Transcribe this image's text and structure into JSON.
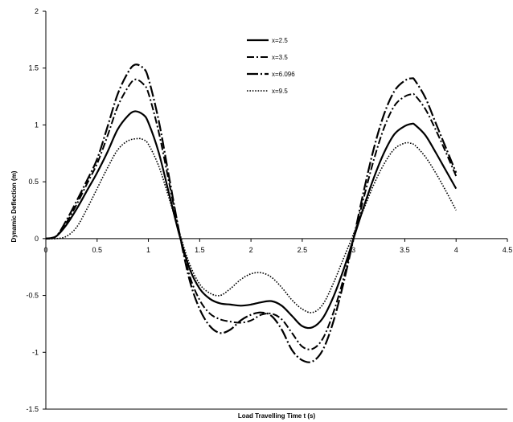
{
  "chart_data": {
    "type": "line",
    "xlabel": "Load Travelling Time t (s)",
    "ylabel": "Dynamic Deflection (m)",
    "xlim": [
      0,
      4.5
    ],
    "ylim": [
      -1.5,
      2
    ],
    "xticks": [
      0,
      0.5,
      1,
      1.5,
      2,
      2.5,
      3,
      3.5,
      4,
      4.5
    ],
    "yticks": [
      -1.5,
      -1,
      -0.5,
      0,
      0.5,
      1,
      1.5,
      2
    ],
    "xtick_labels": [
      "0",
      "0.5",
      "1",
      "1.5",
      "2",
      "2.5",
      "3",
      "3.5",
      "4",
      "4.5"
    ],
    "ytick_labels": [
      "-1.5",
      "-1",
      "-0.5",
      "0",
      "0.5",
      "1",
      "1.5",
      "2"
    ],
    "grid": false,
    "legend_position": "top-center",
    "series": [
      {
        "name": "x=2.5",
        "style": "solid",
        "color": "#000000",
        "x": [
          0,
          0.1,
          0.2,
          0.3,
          0.4,
          0.5,
          0.6,
          0.7,
          0.8,
          0.87,
          0.95,
          1.0,
          1.1,
          1.2,
          1.3,
          1.4,
          1.5,
          1.6,
          1.7,
          1.8,
          1.9,
          2.0,
          2.1,
          2.2,
          2.3,
          2.4,
          2.5,
          2.6,
          2.7,
          2.8,
          2.9,
          3.0,
          3.1,
          3.2,
          3.3,
          3.4,
          3.5,
          3.57,
          3.6,
          3.7,
          3.8,
          3.9,
          4.0
        ],
        "y": [
          0,
          0.02,
          0.12,
          0.26,
          0.42,
          0.58,
          0.76,
          0.96,
          1.08,
          1.12,
          1.09,
          1.02,
          0.76,
          0.4,
          0.04,
          -0.26,
          -0.44,
          -0.53,
          -0.57,
          -0.58,
          -0.59,
          -0.58,
          -0.56,
          -0.55,
          -0.59,
          -0.68,
          -0.77,
          -0.78,
          -0.7,
          -0.52,
          -0.28,
          0.0,
          0.28,
          0.54,
          0.76,
          0.92,
          0.99,
          1.01,
          1.0,
          0.91,
          0.76,
          0.6,
          0.44
        ]
      },
      {
        "name": "x=3.5",
        "style": "dash-dot",
        "color": "#000000",
        "x": [
          0,
          0.1,
          0.2,
          0.3,
          0.4,
          0.5,
          0.6,
          0.7,
          0.8,
          0.87,
          0.95,
          1.0,
          1.1,
          1.2,
          1.3,
          1.4,
          1.5,
          1.6,
          1.7,
          1.8,
          1.9,
          2.0,
          2.1,
          2.2,
          2.3,
          2.4,
          2.5,
          2.6,
          2.7,
          2.8,
          2.9,
          3.0,
          3.1,
          3.2,
          3.3,
          3.4,
          3.5,
          3.57,
          3.6,
          3.7,
          3.8,
          3.9,
          4.0
        ],
        "y": [
          0,
          0.02,
          0.14,
          0.3,
          0.48,
          0.66,
          0.9,
          1.16,
          1.33,
          1.4,
          1.36,
          1.28,
          0.94,
          0.5,
          0.06,
          -0.32,
          -0.54,
          -0.66,
          -0.71,
          -0.73,
          -0.74,
          -0.72,
          -0.67,
          -0.66,
          -0.71,
          -0.83,
          -0.95,
          -0.97,
          -0.88,
          -0.66,
          -0.36,
          0.0,
          0.36,
          0.7,
          0.98,
          1.17,
          1.25,
          1.27,
          1.26,
          1.14,
          0.96,
          0.76,
          0.55
        ]
      },
      {
        "name": "x=6.096",
        "style": "long-dash-dot",
        "color": "#000000",
        "x": [
          0,
          0.1,
          0.2,
          0.3,
          0.4,
          0.5,
          0.6,
          0.7,
          0.8,
          0.87,
          0.95,
          1.0,
          1.1,
          1.2,
          1.3,
          1.4,
          1.5,
          1.6,
          1.7,
          1.8,
          1.9,
          2.0,
          2.1,
          2.2,
          2.3,
          2.4,
          2.5,
          2.6,
          2.7,
          2.8,
          2.9,
          3.0,
          3.1,
          3.2,
          3.3,
          3.4,
          3.5,
          3.57,
          3.6,
          3.7,
          3.8,
          3.9,
          4.0
        ],
        "y": [
          0,
          0.02,
          0.16,
          0.33,
          0.51,
          0.7,
          0.98,
          1.27,
          1.46,
          1.53,
          1.5,
          1.41,
          1.04,
          0.55,
          0.06,
          -0.36,
          -0.62,
          -0.77,
          -0.83,
          -0.8,
          -0.72,
          -0.67,
          -0.65,
          -0.68,
          -0.8,
          -0.98,
          -1.07,
          -1.08,
          -0.98,
          -0.74,
          -0.4,
          0.0,
          0.42,
          0.8,
          1.1,
          1.3,
          1.39,
          1.41,
          1.39,
          1.24,
          1.02,
          0.8,
          0.58
        ]
      },
      {
        "name": "x=9.5",
        "style": "dotted",
        "color": "#000000",
        "x": [
          0,
          0.1,
          0.2,
          0.3,
          0.4,
          0.5,
          0.6,
          0.7,
          0.8,
          0.9,
          0.95,
          1.0,
          1.1,
          1.2,
          1.3,
          1.4,
          1.5,
          1.6,
          1.7,
          1.8,
          1.9,
          2.0,
          2.1,
          2.2,
          2.3,
          2.4,
          2.5,
          2.6,
          2.7,
          2.8,
          2.9,
          3.0,
          3.1,
          3.2,
          3.3,
          3.4,
          3.5,
          3.55,
          3.6,
          3.7,
          3.8,
          3.9,
          4.0
        ],
        "y": [
          0,
          0.0,
          0.02,
          0.1,
          0.26,
          0.44,
          0.62,
          0.78,
          0.86,
          0.88,
          0.87,
          0.83,
          0.64,
          0.36,
          0.06,
          -0.22,
          -0.4,
          -0.48,
          -0.5,
          -0.44,
          -0.36,
          -0.31,
          -0.3,
          -0.34,
          -0.43,
          -0.54,
          -0.62,
          -0.65,
          -0.58,
          -0.4,
          -0.18,
          0.04,
          0.26,
          0.48,
          0.66,
          0.79,
          0.84,
          0.84,
          0.82,
          0.72,
          0.58,
          0.42,
          0.25
        ]
      }
    ]
  }
}
